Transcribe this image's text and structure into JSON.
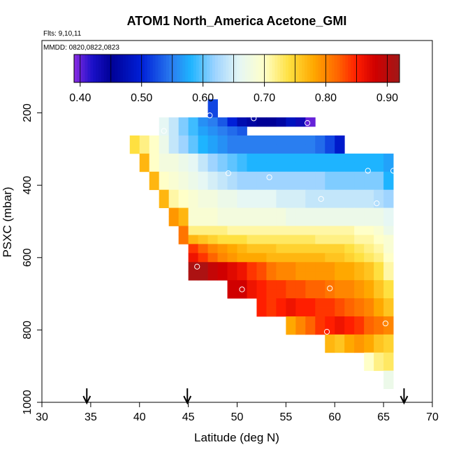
{
  "chart_data": {
    "type": "heatmap",
    "title": "ATOM1 North_America Acetone_GMI",
    "flights_label": "Flts: 9,10,11",
    "mmdd_label": "MMDD: 0820,0822,0823",
    "xlabel": "Latitude (deg N)",
    "ylabel": "PSXC (mbar)",
    "xlim": [
      30,
      70
    ],
    "ylim": [
      1000,
      0
    ],
    "x_ticks": [
      30,
      35,
      40,
      45,
      50,
      55,
      60,
      65,
      70
    ],
    "y_ticks": [
      200,
      400,
      600,
      800,
      1000
    ],
    "cell_width_deg": 1,
    "cell_height_mbar": 25,
    "colorbar": {
      "min": 0.39,
      "max": 0.92,
      "ticks": [
        0.4,
        0.5,
        0.6,
        0.7,
        0.8,
        0.9
      ],
      "tick_labels": [
        "0.40",
        "0.50",
        "0.60",
        "0.70",
        "0.80",
        "0.90"
      ],
      "stops": [
        {
          "v": 0.39,
          "c": "#8a2be2"
        },
        {
          "v": 0.42,
          "c": "#1a10c8"
        },
        {
          "v": 0.45,
          "c": "#000096"
        },
        {
          "v": 0.5,
          "c": "#0020d8"
        },
        {
          "v": 0.55,
          "c": "#2a7ef0"
        },
        {
          "v": 0.58,
          "c": "#1eb4ff"
        },
        {
          "v": 0.62,
          "c": "#9fd4ff"
        },
        {
          "v": 0.66,
          "c": "#e6f7f4"
        },
        {
          "v": 0.7,
          "c": "#ffffc8"
        },
        {
          "v": 0.74,
          "c": "#ffe040"
        },
        {
          "v": 0.78,
          "c": "#ffa800"
        },
        {
          "v": 0.82,
          "c": "#ff6400"
        },
        {
          "v": 0.85,
          "c": "#ff1e00"
        },
        {
          "v": 0.88,
          "c": "#d00000"
        },
        {
          "v": 0.92,
          "c": "#a01818"
        }
      ]
    },
    "rows": [
      {
        "p": 175,
        "lat0": 47,
        "lat1": 48,
        "v": 0.52
      },
      {
        "p": 200,
        "lat0": 47,
        "lat1": 48,
        "v": 0.52
      },
      {
        "p": 225,
        "lat0": 42,
        "lat1": 58,
        "v": [
          0.66,
          0.64,
          0.61,
          0.59,
          0.56,
          0.55,
          0.53,
          0.5,
          0.47,
          0.46,
          0.45,
          0.45,
          0.46,
          0.48,
          0.43,
          0.4
        ]
      },
      {
        "p": 250,
        "lat0": 42,
        "lat1": 51,
        "v": [
          0.66,
          0.64,
          0.61,
          0.59,
          0.57,
          0.56,
          0.55,
          0.54,
          0.53
        ]
      },
      {
        "p": 275,
        "lat0": 39,
        "lat1": 61,
        "v": [
          0.74,
          0.72,
          0.7,
          0.67,
          0.64,
          0.62,
          0.6,
          0.58,
          0.57,
          0.56,
          0.55,
          0.55,
          0.55,
          0.55,
          0.55,
          0.55,
          0.55,
          0.55,
          0.55,
          0.54,
          0.52,
          0.49
        ]
      },
      {
        "p": 300,
        "lat0": 39,
        "lat1": 61,
        "v": [
          0.74,
          0.72,
          0.7,
          0.67,
          0.64,
          0.62,
          0.6,
          0.58,
          0.57,
          0.56,
          0.55,
          0.55,
          0.55,
          0.55,
          0.55,
          0.55,
          0.55,
          0.55,
          0.55,
          0.54,
          0.52,
          0.49
        ]
      },
      {
        "p": 325,
        "lat0": 40,
        "lat1": 66,
        "v": [
          0.77,
          0.7,
          0.68,
          0.68,
          0.67,
          0.66,
          0.64,
          0.62,
          0.61,
          0.6,
          0.59,
          0.58,
          0.58,
          0.58,
          0.58,
          0.58,
          0.58,
          0.58,
          0.58,
          0.58,
          0.58,
          0.58,
          0.58,
          0.58,
          0.58,
          0.57
        ]
      },
      {
        "p": 350,
        "lat0": 40,
        "lat1": 66,
        "v": [
          0.77,
          0.7,
          0.68,
          0.68,
          0.67,
          0.66,
          0.64,
          0.62,
          0.61,
          0.6,
          0.59,
          0.58,
          0.58,
          0.58,
          0.58,
          0.58,
          0.58,
          0.58,
          0.58,
          0.58,
          0.58,
          0.58,
          0.58,
          0.58,
          0.58,
          0.57
        ]
      },
      {
        "p": 375,
        "lat0": 41,
        "lat1": 66,
        "v": [
          0.77,
          0.7,
          0.69,
          0.68,
          0.67,
          0.66,
          0.65,
          0.64,
          0.63,
          0.62,
          0.62,
          0.62,
          0.62,
          0.62,
          0.62,
          0.62,
          0.62,
          0.62,
          0.61,
          0.61,
          0.61,
          0.61,
          0.61,
          0.61,
          0.58
        ]
      },
      {
        "p": 400,
        "lat0": 41,
        "lat1": 66,
        "v": [
          0.77,
          0.7,
          0.69,
          0.68,
          0.67,
          0.66,
          0.65,
          0.64,
          0.63,
          0.62,
          0.62,
          0.62,
          0.62,
          0.62,
          0.62,
          0.62,
          0.62,
          0.62,
          0.61,
          0.61,
          0.61,
          0.61,
          0.61,
          0.61,
          0.58
        ]
      },
      {
        "p": 425,
        "lat0": 42,
        "lat1": 66,
        "v": [
          0.77,
          0.71,
          0.7,
          0.69,
          0.68,
          0.68,
          0.67,
          0.67,
          0.66,
          0.66,
          0.66,
          0.66,
          0.65,
          0.65,
          0.65,
          0.64,
          0.64,
          0.64,
          0.64,
          0.64,
          0.64,
          0.64,
          0.63,
          0.62
        ]
      },
      {
        "p": 450,
        "lat0": 42,
        "lat1": 66,
        "v": [
          0.77,
          0.71,
          0.7,
          0.69,
          0.68,
          0.68,
          0.67,
          0.67,
          0.66,
          0.66,
          0.66,
          0.66,
          0.65,
          0.65,
          0.65,
          0.64,
          0.64,
          0.64,
          0.64,
          0.64,
          0.64,
          0.64,
          0.63,
          0.62
        ]
      },
      {
        "p": 475,
        "lat0": 43,
        "lat1": 66,
        "v": [
          0.79,
          0.77,
          0.69,
          0.69,
          0.69,
          0.68,
          0.68,
          0.68,
          0.68,
          0.68,
          0.68,
          0.68,
          0.67,
          0.67,
          0.67,
          0.67,
          0.67,
          0.67,
          0.67,
          0.67,
          0.67,
          0.67,
          0.66
        ]
      },
      {
        "p": 500,
        "lat0": 43,
        "lat1": 66,
        "v": [
          0.79,
          0.77,
          0.69,
          0.69,
          0.69,
          0.68,
          0.68,
          0.68,
          0.68,
          0.68,
          0.68,
          0.68,
          0.67,
          0.67,
          0.67,
          0.67,
          0.67,
          0.67,
          0.67,
          0.67,
          0.67,
          0.67,
          0.66
        ]
      },
      {
        "p": 525,
        "lat0": 44,
        "lat1": 66,
        "v": [
          0.81,
          0.72,
          0.72,
          0.72,
          0.72,
          0.71,
          0.71,
          0.71,
          0.71,
          0.71,
          0.71,
          0.71,
          0.71,
          0.71,
          0.71,
          0.71,
          0.71,
          0.71,
          0.7,
          0.7,
          0.69,
          0.67
        ]
      },
      {
        "p": 550,
        "lat0": 44,
        "lat1": 66,
        "v": [
          0.81,
          0.77,
          0.76,
          0.75,
          0.74,
          0.74,
          0.74,
          0.73,
          0.73,
          0.73,
          0.73,
          0.73,
          0.73,
          0.73,
          0.72,
          0.72,
          0.72,
          0.72,
          0.71,
          0.71,
          0.7,
          0.69
        ]
      },
      {
        "p": 575,
        "lat0": 45,
        "lat1": 66,
        "v": [
          0.84,
          0.82,
          0.8,
          0.79,
          0.78,
          0.77,
          0.76,
          0.76,
          0.76,
          0.75,
          0.75,
          0.75,
          0.75,
          0.75,
          0.75,
          0.75,
          0.74,
          0.73,
          0.72,
          0.71,
          0.69
        ]
      },
      {
        "p": 600,
        "lat0": 45,
        "lat1": 66,
        "v": [
          0.86,
          0.84,
          0.82,
          0.8,
          0.79,
          0.78,
          0.78,
          0.78,
          0.77,
          0.77,
          0.77,
          0.77,
          0.77,
          0.77,
          0.76,
          0.76,
          0.75,
          0.74,
          0.73,
          0.72,
          0.7
        ]
      },
      {
        "p": 625,
        "lat0": 45,
        "lat1": 66,
        "v": [
          0.91,
          0.91,
          0.89,
          0.88,
          0.87,
          0.86,
          0.84,
          0.83,
          0.81,
          0.8,
          0.8,
          0.79,
          0.79,
          0.79,
          0.79,
          0.78,
          0.78,
          0.77,
          0.76,
          0.74,
          0.71
        ]
      },
      {
        "p": 650,
        "lat0": 45,
        "lat1": 66,
        "v": [
          0.91,
          0.91,
          0.89,
          0.88,
          0.87,
          0.86,
          0.84,
          0.83,
          0.81,
          0.8,
          0.8,
          0.79,
          0.79,
          0.79,
          0.79,
          0.78,
          0.78,
          0.77,
          0.76,
          0.74,
          0.71
        ]
      },
      {
        "p": 675,
        "lat0": 49,
        "lat1": 66,
        "v": [
          0.88,
          0.88,
          0.86,
          0.85,
          0.84,
          0.84,
          0.83,
          0.83,
          0.82,
          0.82,
          0.81,
          0.8,
          0.8,
          0.79,
          0.78,
          0.76,
          0.74
        ]
      },
      {
        "p": 700,
        "lat0": 49,
        "lat1": 66,
        "v": [
          0.88,
          0.88,
          0.86,
          0.85,
          0.84,
          0.84,
          0.83,
          0.83,
          0.82,
          0.82,
          0.81,
          0.8,
          0.8,
          0.79,
          0.78,
          0.76,
          0.74
        ]
      },
      {
        "p": 725,
        "lat0": 52,
        "lat1": 66,
        "v": [
          0.85,
          0.84,
          0.85,
          0.86,
          0.85,
          0.85,
          0.84,
          0.84,
          0.83,
          0.82,
          0.81,
          0.8,
          0.78,
          0.76
        ]
      },
      {
        "p": 750,
        "lat0": 52,
        "lat1": 66,
        "v": [
          0.85,
          0.84,
          0.85,
          0.86,
          0.85,
          0.85,
          0.84,
          0.84,
          0.83,
          0.82,
          0.81,
          0.8,
          0.78,
          0.76
        ]
      },
      {
        "p": 775,
        "lat0": 55,
        "lat1": 66,
        "v": [
          0.78,
          0.8,
          0.82,
          0.84,
          0.85,
          0.86,
          0.85,
          0.84,
          0.82,
          0.81,
          0.8
        ]
      },
      {
        "p": 800,
        "lat0": 55,
        "lat1": 66,
        "v": [
          0.78,
          0.8,
          0.82,
          0.84,
          0.85,
          0.86,
          0.85,
          0.84,
          0.82,
          0.81,
          0.8
        ]
      },
      {
        "p": 825,
        "lat0": 59,
        "lat1": 66,
        "v": [
          0.77,
          0.76,
          0.78,
          0.79,
          0.78,
          0.76,
          0.75
        ]
      },
      {
        "p": 850,
        "lat0": 59,
        "lat1": 66,
        "v": [
          0.77,
          0.76,
          0.78,
          0.79,
          0.78,
          0.76,
          0.75
        ]
      },
      {
        "p": 875,
        "lat0": 63,
        "lat1": 66,
        "v": [
          0.7,
          0.72,
          0.73
        ]
      },
      {
        "p": 900,
        "lat0": 63,
        "lat1": 66,
        "v": [
          0.7,
          0.72,
          0.73
        ]
      },
      {
        "p": 925,
        "lat0": 65,
        "lat1": 66,
        "v": [
          0.67
        ]
      },
      {
        "p": 950,
        "lat0": 65,
        "lat1": 66,
        "v": [
          0.67
        ]
      }
    ],
    "circles": [
      {
        "lat": 47.2,
        "p": 207
      },
      {
        "lat": 51.7,
        "p": 215
      },
      {
        "lat": 57.2,
        "p": 228
      },
      {
        "lat": 42.5,
        "p": 250
      },
      {
        "lat": 49.1,
        "p": 367
      },
      {
        "lat": 53.3,
        "p": 378
      },
      {
        "lat": 63.4,
        "p": 360
      },
      {
        "lat": 66.0,
        "p": 360
      },
      {
        "lat": 58.6,
        "p": 438
      },
      {
        "lat": 64.3,
        "p": 450
      },
      {
        "lat": 45.9,
        "p": 625
      },
      {
        "lat": 50.5,
        "p": 688
      },
      {
        "lat": 59.5,
        "p": 685
      },
      {
        "lat": 65.2,
        "p": 782
      },
      {
        "lat": 59.2,
        "p": 805
      }
    ],
    "arrows": [
      34.6,
      44.9,
      67.1
    ]
  }
}
